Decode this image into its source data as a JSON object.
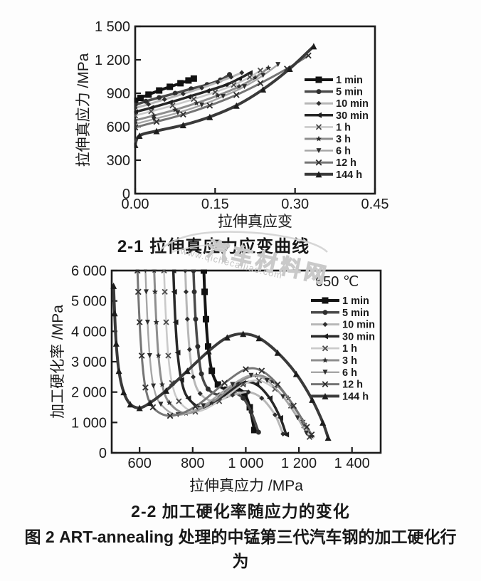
{
  "figure": {
    "caption": "图 2  ART-annealing 处理的中锰第三代汽车钢的加工硬化行为"
  },
  "watermark": {
    "site_name": "汽车材料网",
    "site_url": "www.qichecailiao.com"
  },
  "colors": {
    "axis": "#1c1c1c",
    "text": "#1b1b1b",
    "watermark": "#c9c9c9"
  },
  "chart_data": [
    {
      "id": "2-1",
      "type": "line",
      "caption": "2-1  拉伸真应力应变曲线",
      "xlabel": "拉伸真应变",
      "ylabel": "拉伸真应力 /MPa",
      "xlim": [
        0,
        0.45
      ],
      "ylim": [
        0,
        1500
      ],
      "grid": false,
      "legend_position": "inside-right",
      "x_ticks": {
        "values": [
          0,
          0.15,
          0.3,
          0.45
        ],
        "labels": [
          "0.00",
          "0.15",
          "0.30",
          "0.45"
        ]
      },
      "y_ticks": {
        "values": [
          0,
          300,
          600,
          900,
          1200,
          1500
        ],
        "labels": [
          "0",
          "300",
          "600",
          "900",
          "1 200",
          "1 500"
        ]
      },
      "series": [
        {
          "name": "1 min",
          "color": "#141414",
          "width": 4,
          "marker": "square",
          "marker_color": "#111111",
          "marker_size": 9,
          "points": [
            [
              0,
              833
            ],
            [
              0.01,
              858
            ],
            [
              0.025,
              888
            ],
            [
              0.045,
              925
            ],
            [
              0.065,
              958
            ],
            [
              0.085,
              990
            ],
            [
              0.1,
              1015
            ],
            [
              0.11,
              1032
            ]
          ]
        },
        {
          "name": "5 min",
          "color": "#4a4a4a",
          "width": 3.5,
          "marker": "circle",
          "marker_color": "#2e2e2e",
          "marker_size": 7,
          "points": [
            [
              0,
              795
            ],
            [
              0.02,
              828
            ],
            [
              0.045,
              862
            ],
            [
              0.075,
              900
            ],
            [
              0.105,
              940
            ],
            [
              0.135,
              978
            ],
            [
              0.16,
              1020
            ],
            [
              0.177,
              1068
            ]
          ]
        },
        {
          "name": "10 min",
          "color": "#b7b7b7",
          "width": 3,
          "marker": "diamond",
          "marker_color": "#2e2e2e",
          "marker_size": 7,
          "points": [
            [
              0,
              768
            ],
            [
              0.025,
              802
            ],
            [
              0.055,
              845
            ],
            [
              0.09,
              895
            ],
            [
              0.125,
              948
            ],
            [
              0.155,
              1000
            ],
            [
              0.18,
              1045
            ],
            [
              0.2,
              1085
            ]
          ]
        },
        {
          "name": "30 min",
          "color": "#282828",
          "width": 3.5,
          "marker": "tri-left",
          "marker_color": "#1d1d1d",
          "marker_size": 8,
          "points": [
            [
              0,
              732
            ],
            [
              0.03,
              770
            ],
            [
              0.065,
              818
            ],
            [
              0.1,
              868
            ],
            [
              0.135,
              920
            ],
            [
              0.17,
              975
            ],
            [
              0.195,
              1030
            ],
            [
              0.215,
              1082
            ]
          ]
        },
        {
          "name": "1 h",
          "color": "#cacaca",
          "width": 2.6,
          "marker": "x",
          "marker_color": "#4a4a4a",
          "marker_size": 7,
          "points": [
            [
              0,
              700
            ],
            [
              0.03,
              738
            ],
            [
              0.07,
              790
            ],
            [
              0.11,
              848
            ],
            [
              0.15,
              910
            ],
            [
              0.185,
              975
            ],
            [
              0.215,
              1045
            ],
            [
              0.235,
              1105
            ]
          ]
        },
        {
          "name": "3 h",
          "color": "#8e8e8e",
          "width": 3,
          "marker": "star",
          "marker_color": "#2e2e2e",
          "marker_size": 8.5,
          "points": [
            [
              0,
              657
            ],
            [
              0.035,
              700
            ],
            [
              0.075,
              752
            ],
            [
              0.115,
              812
            ],
            [
              0.155,
              880
            ],
            [
              0.195,
              960
            ],
            [
              0.225,
              1040
            ],
            [
              0.25,
              1128
            ]
          ]
        },
        {
          "name": "6 h",
          "color": "#a6a6a6",
          "width": 2.4,
          "marker": "tri-down",
          "marker_color": "#2e2e2e",
          "marker_size": 7,
          "points": [
            [
              0,
              624
            ],
            [
              0.035,
              668
            ],
            [
              0.08,
              725
            ],
            [
              0.125,
              795
            ],
            [
              0.165,
              872
            ],
            [
              0.205,
              960
            ],
            [
              0.24,
              1060
            ],
            [
              0.268,
              1158
            ]
          ]
        },
        {
          "name": "12 h",
          "color": "#757575",
          "width": 3,
          "marker": "x",
          "marker_color": "#2e2e2e",
          "marker_size": 7.5,
          "points": [
            [
              0,
              594
            ],
            [
              0.04,
              645
            ],
            [
              0.09,
              710
            ],
            [
              0.14,
              790
            ],
            [
              0.19,
              885
            ],
            [
              0.235,
              990
            ],
            [
              0.285,
              1120
            ],
            [
              0.325,
              1238
            ]
          ]
        },
        {
          "name": "144 h",
          "color": "#3a3a3a",
          "width": 4,
          "marker": "tri-up",
          "marker_color": "#1d1d1d",
          "marker_size": 9,
          "points": [
            [
              0,
              438
            ],
            [
              0.008,
              520
            ],
            [
              0.04,
              562
            ],
            [
              0.09,
              615
            ],
            [
              0.14,
              688
            ],
            [
              0.19,
              790
            ],
            [
              0.24,
              935
            ],
            [
              0.29,
              1120
            ],
            [
              0.335,
              1322
            ]
          ]
        }
      ]
    },
    {
      "id": "2-2",
      "type": "line",
      "caption": "2-2  加工硬化率随应力的变化",
      "legend_title": "650 ℃",
      "xlabel": "拉伸真应力 /MPa",
      "ylabel": "加工硬化率 /MPa",
      "xlim": [
        495,
        1508
      ],
      "ylim": [
        0,
        6000
      ],
      "grid": false,
      "legend_position": "inside-right",
      "x_ticks": {
        "values": [
          600,
          800,
          1000,
          1200,
          1400
        ],
        "labels": [
          "600",
          "800",
          "1 000",
          "1 200",
          "1 400"
        ]
      },
      "y_ticks": {
        "values": [
          0,
          1000,
          2000,
          3000,
          4000,
          5000,
          6000
        ],
        "labels": [
          "0",
          "1 000",
          "2 000",
          "3 000",
          "4 000",
          "5 000",
          "6 000"
        ]
      },
      "series": [
        {
          "name": "1 min",
          "color": "#141414",
          "width": 4,
          "marker": "square",
          "marker_color": "#111111",
          "marker_size": 9,
          "points": [
            [
              842,
              6000
            ],
            [
              845,
              5300
            ],
            [
              850,
              4400
            ],
            [
              858,
              3500
            ],
            [
              872,
              2700
            ],
            [
              895,
              2250
            ],
            [
              930,
              2080
            ],
            [
              965,
              2120
            ],
            [
              995,
              1950
            ],
            [
              1015,
              1500
            ],
            [
              1032,
              750
            ]
          ]
        },
        {
          "name": "5 min",
          "color": "#4a4a4a",
          "width": 3.5,
          "marker": "circle",
          "marker_color": "#2e2e2e",
          "marker_size": 7,
          "points": [
            [
              803,
              6000
            ],
            [
              806,
              5300
            ],
            [
              811,
              4400
            ],
            [
              819,
              3500
            ],
            [
              833,
              2600
            ],
            [
              858,
              2100
            ],
            [
              900,
              1900
            ],
            [
              950,
              1980
            ],
            [
              990,
              1800
            ],
            [
              1020,
              1350
            ],
            [
              1048,
              680
            ]
          ]
        },
        {
          "name": "10 min",
          "color": "#b7b7b7",
          "width": 3,
          "marker": "diamond",
          "marker_color": "#2e2e2e",
          "marker_size": 7,
          "points": [
            [
              772,
              6000
            ],
            [
              775,
              5300
            ],
            [
              780,
              4400
            ],
            [
              788,
              3400
            ],
            [
              802,
              2500
            ],
            [
              828,
              1950
            ],
            [
              880,
              1700
            ],
            [
              950,
              1900
            ],
            [
              1010,
              2000
            ],
            [
              1060,
              1800
            ],
            [
              1110,
              1250
            ],
            [
              1140,
              620
            ]
          ]
        },
        {
          "name": "30 min",
          "color": "#282828",
          "width": 3.5,
          "marker": "tri-left",
          "marker_color": "#1d1d1d",
          "marker_size": 8,
          "points": [
            [
              727,
              6000
            ],
            [
              730,
              5300
            ],
            [
              735,
              4300
            ],
            [
              743,
              3300
            ],
            [
              757,
              2400
            ],
            [
              783,
              1800
            ],
            [
              840,
              1500
            ],
            [
              920,
              1900
            ],
            [
              990,
              2300
            ],
            [
              1040,
              2250
            ],
            [
              1090,
              1800
            ],
            [
              1130,
              1150
            ],
            [
              1152,
              600
            ]
          ]
        },
        {
          "name": "1 h",
          "color": "#cacaca",
          "width": 2.6,
          "marker": "x",
          "marker_color": "#4a4a4a",
          "marker_size": 7,
          "points": [
            [
              692,
              6000
            ],
            [
              695,
              5300
            ],
            [
              700,
              4300
            ],
            [
              708,
              3200
            ],
            [
              722,
              2300
            ],
            [
              748,
              1700
            ],
            [
              810,
              1350
            ],
            [
              900,
              1700
            ],
            [
              990,
              2250
            ],
            [
              1050,
              2380
            ],
            [
              1110,
              2100
            ],
            [
              1170,
              1550
            ],
            [
              1220,
              900
            ],
            [
              1240,
              520
            ]
          ]
        },
        {
          "name": "3 h",
          "color": "#8e8e8e",
          "width": 3,
          "marker": "star",
          "marker_color": "#2e2e2e",
          "marker_size": 8.5,
          "points": [
            [
              655,
              6000
            ],
            [
              658,
              5300
            ],
            [
              663,
              4300
            ],
            [
              671,
              3200
            ],
            [
              685,
              2250
            ],
            [
              712,
              1650
            ],
            [
              775,
              1300
            ],
            [
              870,
              1650
            ],
            [
              970,
              2300
            ],
            [
              1040,
              2550
            ],
            [
              1100,
              2350
            ],
            [
              1160,
              1800
            ],
            [
              1215,
              1050
            ],
            [
              1248,
              550
            ]
          ]
        },
        {
          "name": "6 h",
          "color": "#a6a6a6",
          "width": 2.4,
          "marker": "tri-down",
          "marker_color": "#2e2e2e",
          "marker_size": 7,
          "points": [
            [
              622,
              6000
            ],
            [
              625,
              5300
            ],
            [
              630,
              4300
            ],
            [
              638,
              3200
            ],
            [
              652,
              2200
            ],
            [
              680,
              1600
            ],
            [
              745,
              1250
            ],
            [
              840,
              1550
            ],
            [
              950,
              2250
            ],
            [
              1020,
              2550
            ],
            [
              1080,
              2380
            ],
            [
              1140,
              1850
            ],
            [
              1195,
              1150
            ],
            [
              1228,
              650
            ]
          ]
        },
        {
          "name": "12 h",
          "color": "#757575",
          "width": 3,
          "marker": "x",
          "marker_color": "#2e2e2e",
          "marker_size": 7.5,
          "points": [
            [
              592,
              6000
            ],
            [
              595,
              5300
            ],
            [
              600,
              4300
            ],
            [
              608,
              3200
            ],
            [
              622,
              2150
            ],
            [
              650,
              1500
            ],
            [
              715,
              1220
            ],
            [
              810,
              1520
            ],
            [
              920,
              2300
            ],
            [
              1000,
              2750
            ],
            [
              1060,
              2700
            ],
            [
              1120,
              2250
            ],
            [
              1180,
              1550
            ],
            [
              1230,
              850
            ],
            [
              1248,
              600
            ]
          ]
        },
        {
          "name": "144 h",
          "color": "#3a3a3a",
          "width": 4,
          "marker": "tri-up",
          "marker_color": "#1d1d1d",
          "marker_size": 9,
          "points": [
            [
              502,
              5500
            ],
            [
              506,
              4600
            ],
            [
              512,
              3600
            ],
            [
              522,
              2700
            ],
            [
              540,
              2000
            ],
            [
              565,
              1600
            ],
            [
              600,
              1480
            ],
            [
              640,
              1650
            ],
            [
              700,
              2050
            ],
            [
              780,
              2700
            ],
            [
              860,
              3350
            ],
            [
              930,
              3800
            ],
            [
              990,
              3920
            ],
            [
              1050,
              3780
            ],
            [
              1120,
              3300
            ],
            [
              1190,
              2600
            ],
            [
              1250,
              1750
            ],
            [
              1290,
              1000
            ],
            [
              1310,
              500
            ]
          ]
        }
      ]
    }
  ]
}
